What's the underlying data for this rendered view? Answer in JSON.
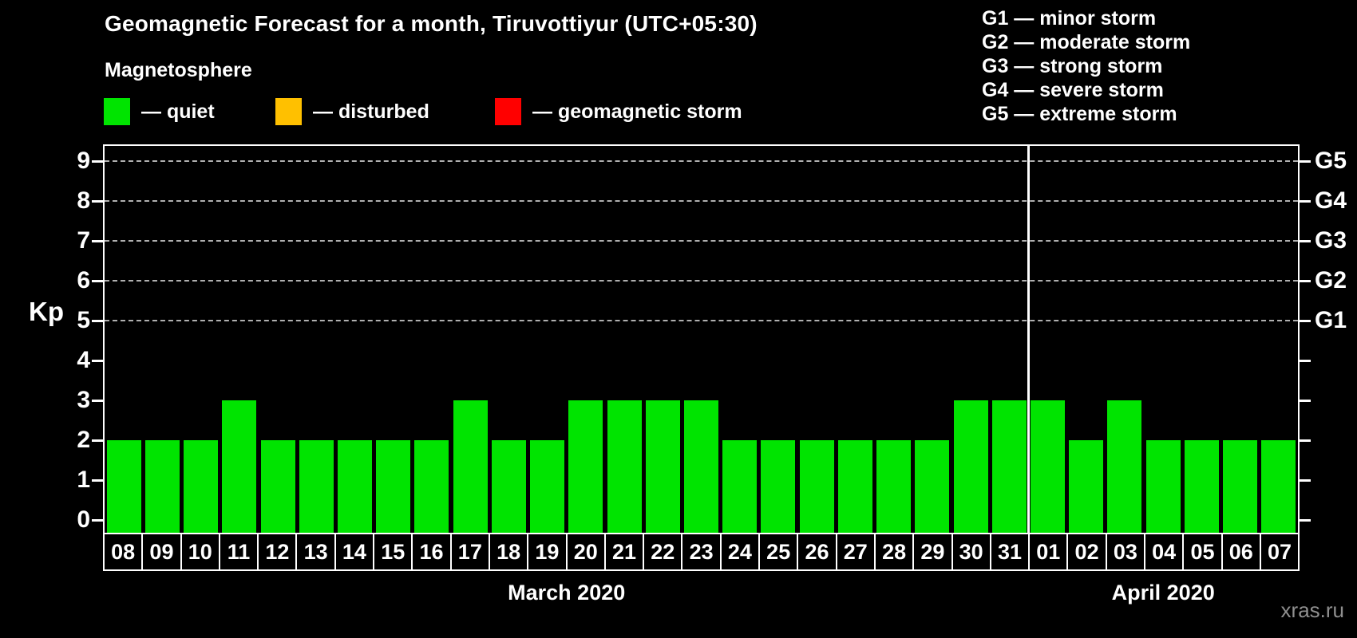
{
  "title": "Geomagnetic Forecast for a month, Tiruvottiyur (UTC+05:30)",
  "subtitle": "Magnetosphere",
  "legend": {
    "items": [
      {
        "name": "quiet",
        "label": "— quiet",
        "color": "#00e400"
      },
      {
        "name": "disturbed",
        "label": "— disturbed",
        "color": "#ffc000"
      },
      {
        "name": "geomagnetic-storm",
        "label": "— geomagnetic storm",
        "color": "#ff0000"
      }
    ]
  },
  "storm_scale": {
    "lines": [
      "G1 — minor storm",
      "G2 — moderate storm",
      "G3 — strong storm",
      "G4 — severe storm",
      "G5 — extreme storm"
    ]
  },
  "watermark": "xras.ru",
  "chart_data": {
    "type": "bar",
    "title": "Geomagnetic Forecast for a month, Tiruvottiyur (UTC+05:30)",
    "ylabel": "Kp",
    "ylim": [
      0,
      9
    ],
    "yticks": [
      0,
      1,
      2,
      3,
      4,
      5,
      6,
      7,
      8,
      9
    ],
    "gridlines_at": [
      5,
      6,
      7,
      8,
      9
    ],
    "grid": "dashed horizontal at Kp 5-9",
    "legend_position": "top",
    "right_axis": [
      {
        "value": 5,
        "label": "G1"
      },
      {
        "value": 6,
        "label": "G2"
      },
      {
        "value": 7,
        "label": "G3"
      },
      {
        "value": 8,
        "label": "G4"
      },
      {
        "value": 9,
        "label": "G5"
      }
    ],
    "categories": [
      "08",
      "09",
      "10",
      "11",
      "12",
      "13",
      "14",
      "15",
      "16",
      "17",
      "18",
      "19",
      "20",
      "21",
      "22",
      "23",
      "24",
      "25",
      "26",
      "27",
      "28",
      "29",
      "30",
      "31",
      "01",
      "02",
      "03",
      "04",
      "05",
      "06",
      "07"
    ],
    "values": [
      2,
      2,
      2,
      3,
      2,
      2,
      2,
      2,
      2,
      3,
      2,
      2,
      3,
      3,
      3,
      3,
      2,
      2,
      2,
      2,
      2,
      2,
      3,
      3,
      3,
      2,
      3,
      2,
      2,
      2,
      2
    ],
    "bar_color": "#00e400",
    "month_separator_after_index": 23,
    "month_groups": [
      {
        "label": "March 2020",
        "start_index": 0,
        "days": 24
      },
      {
        "label": "April 2020",
        "start_index": 24,
        "days": 7
      }
    ]
  }
}
